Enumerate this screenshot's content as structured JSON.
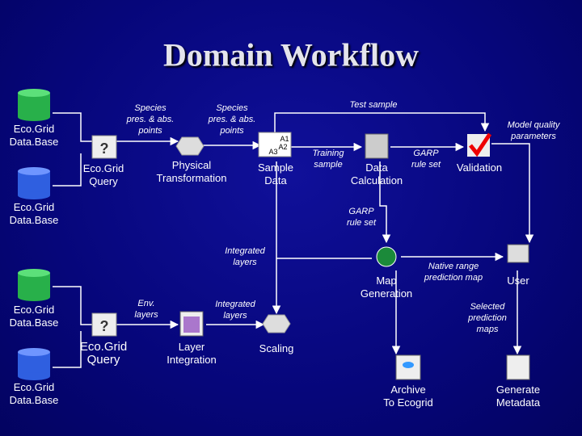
{
  "title": "Domain Workflow",
  "nodes": [
    {
      "label": [
        "Eco.Grid",
        "Data.Base"
      ]
    },
    {
      "label": [
        "Eco.Grid",
        "Data.Base"
      ]
    },
    {
      "label": [
        "Eco.Grid",
        "Query"
      ]
    },
    {
      "label": [
        "Physical",
        "Transformation"
      ]
    },
    {
      "label": [
        "Sample",
        "Data"
      ]
    },
    {
      "label": [
        "Data",
        "Calculation"
      ]
    },
    {
      "label": [
        "Validation"
      ]
    },
    {
      "label": [
        "Map",
        "Generation"
      ]
    },
    {
      "label": [
        "User"
      ]
    },
    {
      "label": [
        "Eco.Grid",
        "Data.Base"
      ]
    },
    {
      "label": [
        "Eco.Grid",
        "Data.Base"
      ]
    },
    {
      "label": [
        "Eco.Grid",
        "Query"
      ]
    },
    {
      "label": [
        "Layer",
        "Integration"
      ]
    },
    {
      "label": [
        "Scaling"
      ]
    },
    {
      "label": [
        "Archive",
        "To Ecogrid"
      ]
    },
    {
      "label": [
        "Generate",
        "Metadata"
      ]
    }
  ],
  "edge_labels": [
    [
      "Species",
      "pres. & abs.",
      "points"
    ],
    [
      "Species",
      "pres. & abs.",
      "points"
    ],
    [
      "Test sample"
    ],
    [
      "Model quality",
      "parameters"
    ],
    [
      "Training",
      "sample"
    ],
    [
      "GARP",
      "rule set"
    ],
    [
      "GARP",
      "rule set"
    ],
    [
      "Integrated",
      "layers"
    ],
    [
      "Env.",
      "layers"
    ],
    [
      "Integrated",
      "layers"
    ],
    [
      "Native range",
      "prediction map"
    ],
    [
      "Selected",
      "prediction",
      "maps"
    ]
  ],
  "icon_texts": [
    "A1",
    "A2",
    "A3"
  ]
}
